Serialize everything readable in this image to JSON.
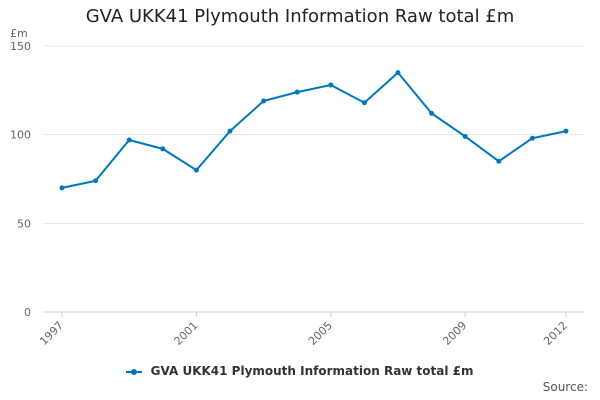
{
  "chart_data": {
    "type": "line",
    "title": "GVA UKK41 Plymouth Information Raw total £m",
    "ylabel": "£m",
    "xlabel": "",
    "ylim": [
      0,
      150
    ],
    "yticks": [
      "0",
      "50",
      "100",
      "150"
    ],
    "xticks": [
      "1997",
      "2001",
      "2005",
      "2009",
      "2012"
    ],
    "grid": true,
    "legend_position": "bottom",
    "source_label": "Source:",
    "colors": {
      "series": "#0077bb",
      "grid": "#e6e6e6",
      "axis_text": "#666666"
    },
    "x": [
      1997,
      1998,
      1999,
      2000,
      2001,
      2002,
      2003,
      2004,
      2005,
      2006,
      2007,
      2008,
      2009,
      2010,
      2011,
      2012
    ],
    "series": [
      {
        "name": "GVA UKK41 Plymouth Information Raw total £m",
        "values": [
          70,
          74,
          97,
          92,
          80,
          102,
          119,
          124,
          128,
          118,
          135,
          112,
          99,
          85,
          98,
          102
        ]
      }
    ]
  }
}
